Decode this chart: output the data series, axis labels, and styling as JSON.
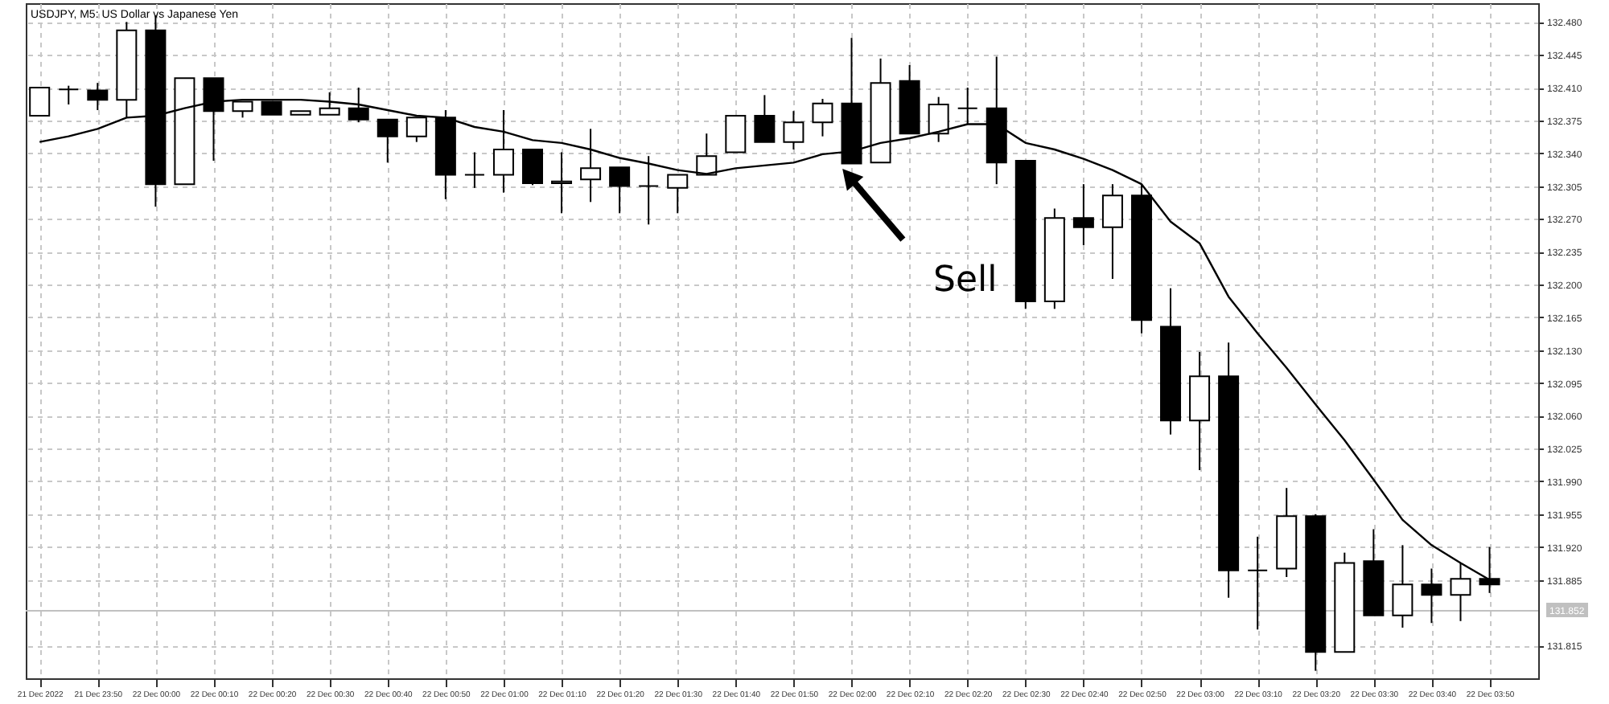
{
  "chart_data": {
    "type": "candlestick",
    "title": "USDJPY, M5:  US Dollar vs Japanese Yen",
    "x": [
      "2022-12-21T23:40",
      "2022-12-21T23:45",
      "2022-12-21T23:50",
      "2022-12-21T23:55",
      "2022-12-22T00:00",
      "2022-12-22T00:05",
      "2022-12-22T00:10",
      "2022-12-22T00:15",
      "2022-12-22T00:20",
      "2022-12-22T00:25",
      "2022-12-22T00:30",
      "2022-12-22T00:35",
      "2022-12-22T00:40",
      "2022-12-22T00:45",
      "2022-12-22T00:50",
      "2022-12-22T00:55",
      "2022-12-22T01:00",
      "2022-12-22T01:05",
      "2022-12-22T01:10",
      "2022-12-22T01:15",
      "2022-12-22T01:20",
      "2022-12-22T01:25",
      "2022-12-22T01:30",
      "2022-12-22T01:35",
      "2022-12-22T01:40",
      "2022-12-22T01:45",
      "2022-12-22T01:50",
      "2022-12-22T01:55",
      "2022-12-22T02:00",
      "2022-12-22T02:05",
      "2022-12-22T02:10",
      "2022-12-22T02:15",
      "2022-12-22T02:20",
      "2022-12-22T02:25",
      "2022-12-22T02:30",
      "2022-12-22T02:35",
      "2022-12-22T02:40",
      "2022-12-22T02:45",
      "2022-12-22T02:50",
      "2022-12-22T02:55",
      "2022-12-22T03:00",
      "2022-12-22T03:05",
      "2022-12-22T03:10",
      "2022-12-22T03:15",
      "2022-12-22T03:20",
      "2022-12-22T03:25",
      "2022-12-22T03:30",
      "2022-12-22T03:35",
      "2022-12-22T03:40",
      "2022-12-22T03:45",
      "2022-12-22T03:50"
    ],
    "ohlc": [
      [
        132.38,
        132.41,
        132.38,
        132.41
      ],
      [
        132.408,
        132.412,
        132.392,
        132.408
      ],
      [
        132.407,
        132.415,
        132.386,
        132.397
      ],
      [
        132.397,
        132.48,
        132.378,
        132.471
      ],
      [
        132.471,
        132.487,
        132.283,
        132.307
      ],
      [
        132.307,
        132.42,
        132.307,
        132.42
      ],
      [
        132.42,
        132.42,
        132.332,
        132.385
      ],
      [
        132.385,
        132.395,
        132.378,
        132.395
      ],
      [
        132.395,
        132.395,
        132.381,
        132.381
      ],
      [
        132.381,
        132.385,
        132.381,
        132.385
      ],
      [
        132.381,
        132.405,
        132.381,
        132.388
      ],
      [
        132.388,
        132.41,
        132.373,
        132.376
      ],
      [
        132.376,
        132.376,
        132.33,
        132.358
      ],
      [
        132.358,
        132.378,
        132.352,
        132.378
      ],
      [
        132.378,
        132.386,
        132.291,
        132.317
      ],
      [
        132.317,
        132.341,
        132.303,
        132.317
      ],
      [
        132.317,
        132.386,
        132.298,
        132.344
      ],
      [
        132.344,
        132.344,
        132.306,
        132.308
      ],
      [
        132.308,
        132.341,
        132.276,
        132.31
      ],
      [
        132.312,
        132.366,
        132.288,
        132.324
      ],
      [
        132.325,
        132.325,
        132.276,
        132.305
      ],
      [
        132.305,
        132.337,
        132.264,
        132.305
      ],
      [
        132.303,
        132.317,
        132.276,
        132.317
      ],
      [
        132.317,
        132.361,
        132.317,
        132.337
      ],
      [
        132.341,
        132.38,
        132.341,
        132.38
      ],
      [
        132.38,
        132.402,
        132.352,
        132.352
      ],
      [
        132.352,
        132.385,
        132.344,
        132.373
      ],
      [
        132.373,
        132.398,
        132.358,
        132.393
      ],
      [
        132.393,
        132.463,
        132.329,
        132.329
      ],
      [
        132.33,
        132.441,
        132.33,
        132.415
      ],
      [
        132.417,
        132.434,
        132.361,
        132.361
      ],
      [
        132.361,
        132.4,
        132.352,
        132.392
      ],
      [
        132.388,
        132.41,
        132.371,
        132.388
      ],
      [
        132.388,
        132.443,
        132.307,
        132.33
      ],
      [
        132.332,
        132.332,
        132.174,
        132.182
      ],
      [
        132.182,
        132.281,
        132.174,
        132.271
      ],
      [
        132.271,
        132.307,
        132.242,
        132.261
      ],
      [
        132.261,
        132.307,
        132.206,
        132.295
      ],
      [
        132.295,
        132.307,
        132.148,
        132.162
      ],
      [
        132.155,
        132.196,
        132.04,
        132.055
      ],
      [
        132.055,
        132.128,
        132.002,
        132.102
      ],
      [
        132.102,
        132.138,
        131.866,
        131.895
      ],
      [
        131.895,
        131.931,
        131.832,
        131.895
      ],
      [
        131.897,
        131.983,
        131.888,
        131.953
      ],
      [
        131.953,
        131.955,
        131.788,
        131.808
      ],
      [
        131.808,
        131.914,
        131.808,
        131.903
      ],
      [
        131.905,
        131.939,
        131.847,
        131.847
      ],
      [
        131.847,
        131.922,
        131.834,
        131.88
      ],
      [
        131.88,
        131.897,
        131.839,
        131.869
      ],
      [
        131.869,
        131.903,
        131.841,
        131.886
      ],
      [
        131.886,
        131.92,
        131.871,
        131.88
      ]
    ],
    "colors": [
      "#ffffff",
      "#000000",
      "#000000",
      "#ffffff",
      "#000000",
      "#ffffff",
      "#000000",
      "#ffffff",
      "#000000",
      "#ffffff",
      "#ffffff",
      "#000000",
      "#000000",
      "#ffffff",
      "#000000",
      "#000000",
      "#ffffff",
      "#000000",
      "#ffffff",
      "#ffffff",
      "#000000",
      "#000000",
      "#ffffff",
      "#ffffff",
      "#ffffff",
      "#000000",
      "#ffffff",
      "#ffffff",
      "#000000",
      "#ffffff",
      "#000000",
      "#ffffff",
      "#000000",
      "#000000",
      "#000000",
      "#ffffff",
      "#000000",
      "#ffffff",
      "#000000",
      "#000000",
      "#ffffff",
      "#000000",
      "#000000",
      "#ffffff",
      "#000000",
      "#ffffff",
      "#000000",
      "#ffffff",
      "#000000",
      "#ffffff",
      "#000000"
    ],
    "series": [
      {
        "type": "line",
        "color": "#000000",
        "values": [
          132.352,
          132.358,
          132.366,
          132.378,
          132.38,
          132.388,
          132.395,
          132.397,
          132.397,
          132.397,
          132.395,
          132.392,
          132.386,
          132.38,
          132.378,
          132.368,
          132.363,
          132.354,
          132.351,
          132.344,
          132.335,
          132.329,
          132.322,
          132.318,
          132.324,
          132.327,
          132.33,
          132.339,
          132.342,
          132.351,
          132.356,
          132.363,
          132.371,
          132.371,
          132.351,
          132.344,
          132.334,
          132.322,
          132.307,
          132.267,
          132.244,
          132.187,
          132.148,
          132.111,
          132.072,
          132.034,
          131.992,
          131.949,
          131.922,
          131.903,
          131.885
        ]
      }
    ],
    "xlim": [
      "2022-12-21T23:39",
      "2022-12-22T03:57"
    ],
    "xticks": [
      {
        "value": "2022-12-21T23:40",
        "label": "21 Dec 2022"
      },
      {
        "value": "2022-12-21T23:50",
        "label": "21 Dec 23:50"
      },
      {
        "value": "2022-12-22T00:00",
        "label": "22 Dec 00:00"
      },
      {
        "value": "2022-12-22T00:10",
        "label": "22 Dec 00:10"
      },
      {
        "value": "2022-12-22T00:20",
        "label": "22 Dec 00:20"
      },
      {
        "value": "2022-12-22T00:30",
        "label": "22 Dec 00:30"
      },
      {
        "value": "2022-12-22T00:40",
        "label": "22 Dec 00:40"
      },
      {
        "value": "2022-12-22T00:50",
        "label": "22 Dec 00:50"
      },
      {
        "value": "2022-12-22T01:00",
        "label": "22 Dec 01:00"
      },
      {
        "value": "2022-12-22T01:10",
        "label": "22 Dec 01:10"
      },
      {
        "value": "2022-12-22T01:20",
        "label": "22 Dec 01:20"
      },
      {
        "value": "2022-12-22T01:30",
        "label": "22 Dec 01:30"
      },
      {
        "value": "2022-12-22T01:40",
        "label": "22 Dec 01:40"
      },
      {
        "value": "2022-12-22T01:50",
        "label": "22 Dec 01:50"
      },
      {
        "value": "2022-12-22T02:00",
        "label": "22 Dec 02:00"
      },
      {
        "value": "2022-12-22T02:10",
        "label": "22 Dec 02:10"
      },
      {
        "value": "2022-12-22T02:20",
        "label": "22 Dec 02:20"
      },
      {
        "value": "2022-12-22T02:30",
        "label": "22 Dec 02:30"
      },
      {
        "value": "2022-12-22T02:40",
        "label": "22 Dec 02:40"
      },
      {
        "value": "2022-12-22T02:50",
        "label": "22 Dec 02:50"
      },
      {
        "value": "2022-12-22T03:00",
        "label": "22 Dec 03:00"
      },
      {
        "value": "2022-12-22T03:10",
        "label": "22 Dec 03:10"
      },
      {
        "value": "2022-12-22T03:20",
        "label": "22 Dec 03:20"
      },
      {
        "value": "2022-12-22T03:30",
        "label": "22 Dec 03:30"
      },
      {
        "value": "2022-12-22T03:40",
        "label": "22 Dec 03:40"
      },
      {
        "value": "2022-12-22T03:50",
        "label": "22 Dec 03:50"
      }
    ],
    "ylim": [
      131.78,
      132.5
    ],
    "yticks": [
      131.815,
      131.885,
      {
        "value": 131.92,
        "label": "131.920"
      },
      131.955,
      {
        "value": 131.99,
        "label": "131.990"
      },
      132.025,
      {
        "value": 132.06,
        "label": "132.060"
      },
      132.095,
      {
        "value": 132.13,
        "label": "132.130"
      },
      132.165,
      {
        "value": 132.2,
        "label": "132.200"
      },
      132.235,
      {
        "value": 132.27,
        "label": "132.270"
      },
      132.305,
      {
        "value": 132.34,
        "label": "132.340"
      },
      132.375,
      {
        "value": 132.41,
        "label": "132.410"
      },
      132.445,
      {
        "value": 132.48,
        "label": "132.480"
      }
    ],
    "ref_lines": [
      {
        "axis": "y",
        "value": 131.852,
        "label": "131.852",
        "color": "#c0c0c0"
      }
    ],
    "annotations": [
      "Sell"
    ],
    "grid": true
  }
}
